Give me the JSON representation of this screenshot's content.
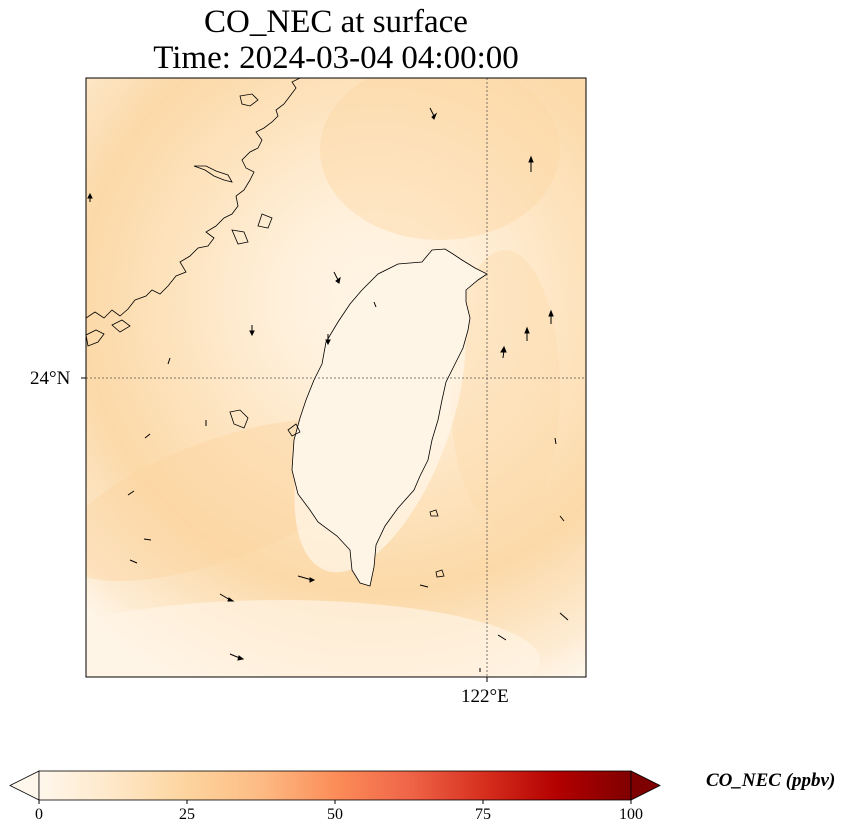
{
  "title": {
    "line1": "CO_NEC at surface",
    "line2": "Time: 2024-03-04 04:00:00"
  },
  "map": {
    "lat_gridline_label": "24°N",
    "lon_gridline_label": "122°E",
    "field_level_range_ppbv": [
      0,
      20
    ],
    "region": "Taiwan Strait and Taiwan island with Fujian coast"
  },
  "colorbar": {
    "label": "CO_NEC (ppbv)",
    "min": 0,
    "max": 100,
    "ticks": [
      "0",
      "25",
      "50",
      "75",
      "100"
    ],
    "colors": [
      "#fff7ec",
      "#fee8c8",
      "#fdd49e",
      "#fdbb84",
      "#fc8d59",
      "#ef6548",
      "#d7301f",
      "#b30000",
      "#7f0000"
    ],
    "extend": "both"
  }
}
